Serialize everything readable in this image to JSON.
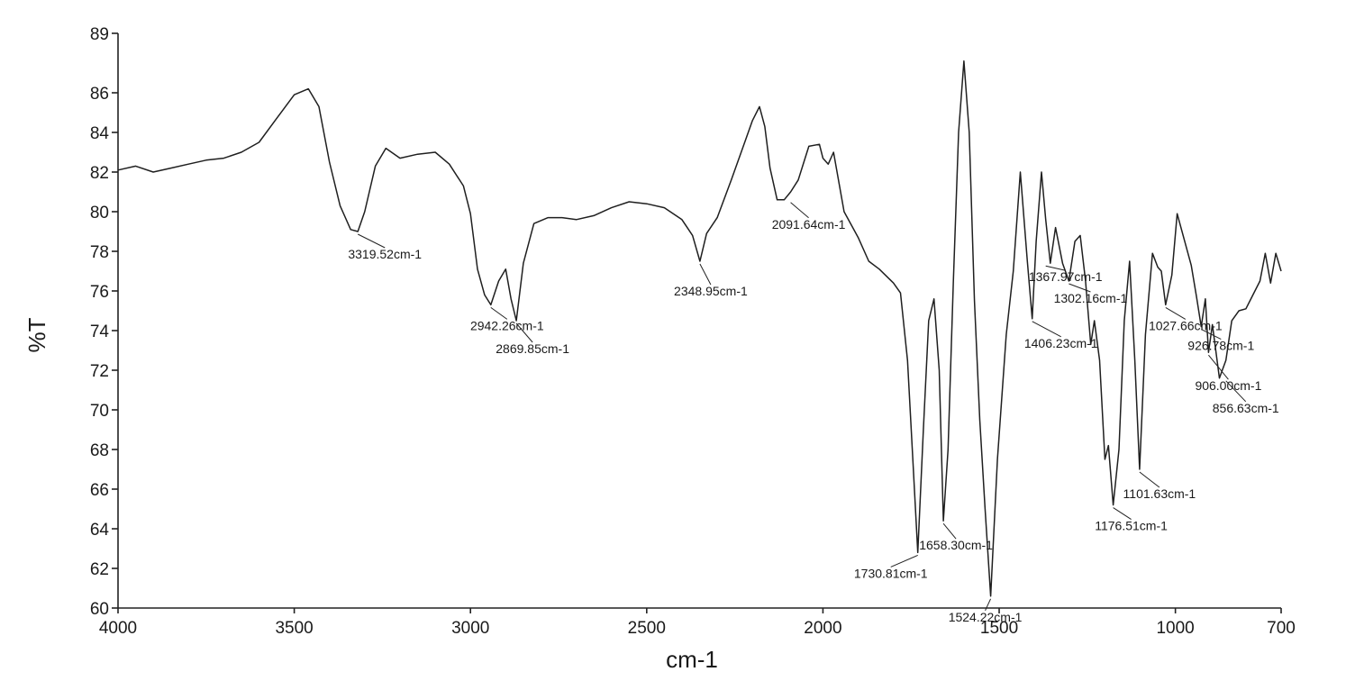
{
  "chart_data": {
    "type": "line",
    "title": "",
    "xlabel": "cm-1",
    "ylabel": "%T",
    "xlim": [
      4000,
      700
    ],
    "ylim": [
      60,
      89
    ],
    "x_reversed": true,
    "grid": false,
    "x_ticks": [
      {
        "value": 4000,
        "label": "4000"
      },
      {
        "value": 3500,
        "label": "3500"
      },
      {
        "value": 3000,
        "label": "3000"
      },
      {
        "value": 2500,
        "label": "2500"
      },
      {
        "value": 2000,
        "label": "2000"
      },
      {
        "value": 1500,
        "label": "1500"
      },
      {
        "value": 1000,
        "label": "1000"
      },
      {
        "value": 700,
        "label": "700"
      }
    ],
    "y_ticks": [
      {
        "value": 60,
        "label": "60"
      },
      {
        "value": 62,
        "label": "62"
      },
      {
        "value": 64,
        "label": "64"
      },
      {
        "value": 66,
        "label": "66"
      },
      {
        "value": 68,
        "label": "68"
      },
      {
        "value": 70,
        "label": "70"
      },
      {
        "value": 72,
        "label": "72"
      },
      {
        "value": 74,
        "label": "74"
      },
      {
        "value": 76,
        "label": "76"
      },
      {
        "value": 78,
        "label": "78"
      },
      {
        "value": 80,
        "label": "80"
      },
      {
        "value": 82,
        "label": "82"
      },
      {
        "value": 84,
        "label": "84"
      },
      {
        "value": 86,
        "label": "86"
      },
      {
        "value": 89,
        "label": "89"
      }
    ],
    "series": [
      {
        "x": [
          4000,
          3950,
          3900,
          3850,
          3800,
          3750,
          3700,
          3650,
          3600,
          3550,
          3500,
          3460,
          3430,
          3400,
          3370,
          3340,
          3319.52,
          3300,
          3270,
          3240,
          3200,
          3150,
          3100,
          3060,
          3020,
          3000,
          2980,
          2960,
          2942.26,
          2920,
          2900,
          2885,
          2869.85,
          2850,
          2820,
          2780,
          2740,
          2700,
          2650,
          2600,
          2550,
          2500,
          2450,
          2400,
          2370,
          2348.95,
          2330,
          2300,
          2260,
          2220,
          2200,
          2180,
          2165,
          2150,
          2130,
          2110,
          2091.64,
          2070,
          2040,
          2010,
          2000,
          1985,
          1970,
          1960,
          1940,
          1900,
          1870,
          1840,
          1800,
          1780,
          1760,
          1745,
          1730.81,
          1715,
          1700,
          1685,
          1670,
          1658.3,
          1645,
          1630,
          1615,
          1600,
          1585,
          1570,
          1555,
          1540,
          1524.22,
          1505,
          1480,
          1460,
          1440,
          1420,
          1406.23,
          1395,
          1380,
          1367.97,
          1355,
          1340,
          1320,
          1302.16,
          1285,
          1270,
          1255,
          1240,
          1230,
          1215,
          1200,
          1190,
          1176.51,
          1160,
          1145,
          1130,
          1115,
          1101.63,
          1085,
          1065,
          1050,
          1040,
          1027.66,
          1010,
          995,
          975,
          955,
          940,
          926.78,
          915,
          906.0,
          895,
          875,
          856.63,
          840,
          820,
          800,
          780,
          760,
          745,
          730,
          715,
          700
        ],
        "y": [
          82.1,
          82.3,
          82.0,
          82.2,
          82.4,
          82.6,
          82.7,
          83.0,
          83.5,
          84.7,
          85.9,
          86.2,
          85.3,
          82.5,
          80.3,
          79.1,
          79.0,
          80.0,
          82.3,
          83.2,
          82.7,
          82.9,
          83.0,
          82.4,
          81.3,
          79.9,
          77.1,
          75.8,
          75.3,
          76.5,
          77.1,
          75.6,
          74.5,
          77.4,
          79.4,
          79.7,
          79.7,
          79.6,
          79.8,
          80.2,
          80.5,
          80.4,
          80.2,
          79.6,
          78.8,
          77.5,
          78.9,
          79.7,
          81.6,
          83.6,
          84.6,
          85.3,
          84.3,
          82.2,
          80.6,
          80.6,
          81.0,
          81.6,
          83.3,
          83.4,
          82.7,
          82.4,
          83.0,
          82.0,
          80.0,
          78.7,
          77.5,
          77.1,
          76.4,
          75.9,
          72.5,
          67.5,
          62.8,
          69.0,
          74.5,
          75.6,
          72.0,
          64.4,
          68.0,
          76.5,
          84.0,
          87.6,
          84.0,
          75.5,
          69.5,
          65.0,
          60.6,
          67.5,
          73.8,
          77.0,
          82.0,
          77.5,
          74.6,
          78.5,
          82.0,
          79.6,
          77.4,
          79.2,
          77.4,
          76.5,
          78.5,
          78.8,
          76.5,
          73.3,
          74.5,
          72.5,
          67.5,
          68.2,
          65.2,
          68.0,
          74.5,
          77.5,
          72.5,
          67.0,
          73.8,
          77.9,
          77.2,
          77.0,
          75.3,
          76.8,
          79.9,
          78.6,
          77.3,
          75.7,
          74.2,
          75.6,
          72.9,
          74.3,
          71.6,
          72.5,
          74.5,
          75.0,
          75.1,
          75.8,
          76.5,
          77.9,
          76.4,
          77.9,
          77.0
        ]
      }
    ],
    "annotations": [
      {
        "text": "3319.52cm-1",
        "x": 3319.52,
        "y": 79.0
      },
      {
        "text": "2942.26cm-1",
        "x": 2942.26,
        "y": 75.3
      },
      {
        "text": "2869.85cm-1",
        "x": 2869.85,
        "y": 74.5
      },
      {
        "text": "2348.95cm-1",
        "x": 2348.95,
        "y": 77.5
      },
      {
        "text": "2091.64cm-1",
        "x": 2091.64,
        "y": 80.6
      },
      {
        "text": "1730.81cm-1",
        "x": 1730.81,
        "y": 62.8
      },
      {
        "text": "1658.30cm-1",
        "x": 1658.3,
        "y": 64.4
      },
      {
        "text": "1524.22cm-1",
        "x": 1524.22,
        "y": 60.6
      },
      {
        "text": "1406.23cm-1",
        "x": 1406.23,
        "y": 74.6
      },
      {
        "text": "1367.97cm-1",
        "x": 1367.97,
        "y": 77.4
      },
      {
        "text": "1302.16cm-1",
        "x": 1302.16,
        "y": 76.5
      },
      {
        "text": "1176.51cm-1",
        "x": 1176.51,
        "y": 65.2
      },
      {
        "text": "1101.63cm-1",
        "x": 1101.63,
        "y": 67.0
      },
      {
        "text": "1027.66cm-1",
        "x": 1027.66,
        "y": 75.3
      },
      {
        "text": "926.78cm-1",
        "x": 926.78,
        "y": 74.2
      },
      {
        "text": "906.00cm-1",
        "x": 906.0,
        "y": 72.9
      },
      {
        "text": "856.63cm-1",
        "x": 856.63,
        "y": 71.6
      }
    ]
  }
}
